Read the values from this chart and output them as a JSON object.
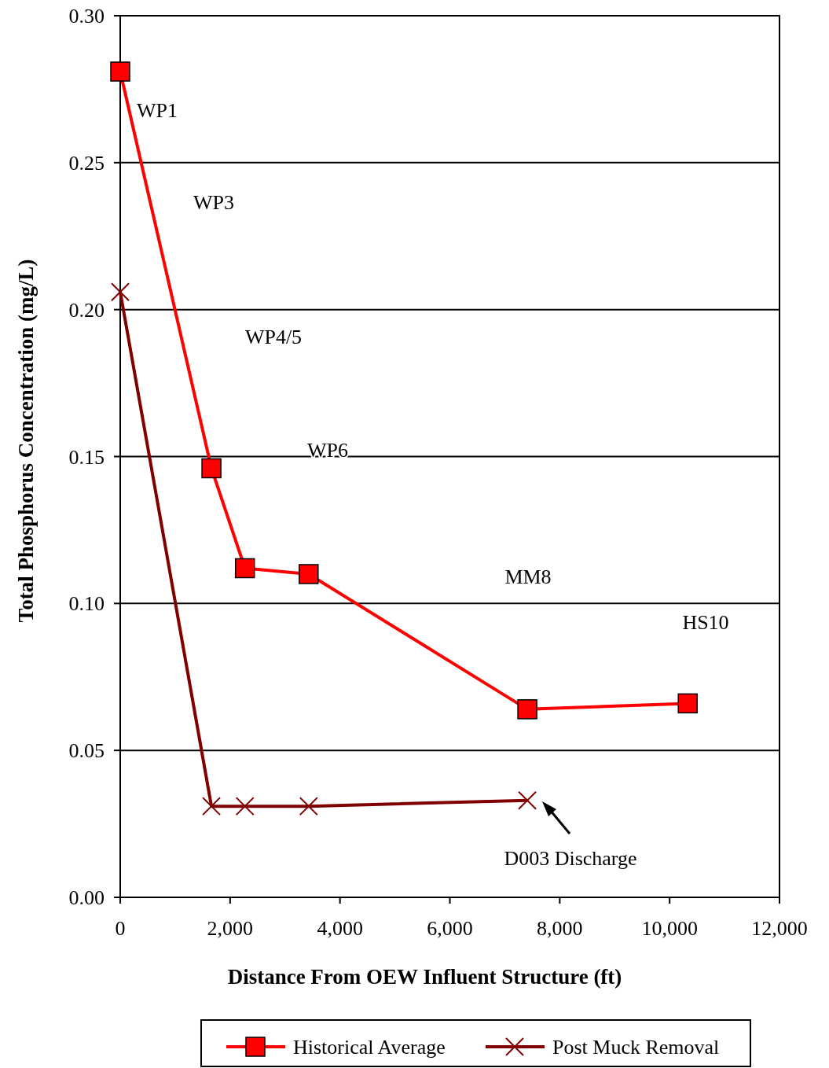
{
  "chart_data": {
    "type": "line",
    "xlabel": "Distance From OEW Influent Structure (ft)",
    "ylabel": "Total Phosphorus Concentration (mg/L)",
    "xlim": [
      0,
      12000
    ],
    "xticks": [
      {
        "value": 0,
        "label": "0"
      },
      {
        "value": 2000,
        "label": "2,000"
      },
      {
        "value": 4000,
        "label": "4,000"
      },
      {
        "value": 6000,
        "label": "6,000"
      },
      {
        "value": 8000,
        "label": "8,000"
      },
      {
        "value": 10000,
        "label": "10,000"
      },
      {
        "value": 12000,
        "label": "12,000"
      }
    ],
    "ylim": [
      0,
      0.3
    ],
    "yticks": [
      {
        "value": 0,
        "label": "0.00"
      },
      {
        "value": 0.05,
        "label": "0.05"
      },
      {
        "value": 0.1,
        "label": "0.10"
      },
      {
        "value": 0.15,
        "label": "0.15"
      },
      {
        "value": 0.2,
        "label": "0.20"
      },
      {
        "value": 0.25,
        "label": "0.25"
      },
      {
        "value": 0.3,
        "label": "0.30"
      }
    ],
    "grid": "y",
    "legend": "bottom",
    "line_style": "solid",
    "series": [
      {
        "name": "Historical Average",
        "color": "#ff0000",
        "marker": "square",
        "x": [
          0,
          1660,
          2270,
          3430,
          7410,
          10330
        ],
        "values": [
          0.281,
          0.146,
          0.112,
          0.11,
          0.064,
          0.066
        ]
      },
      {
        "name": "Post Muck Removal",
        "color": "#800000",
        "marker": "cross",
        "x": [
          0,
          1660,
          2270,
          3430,
          7410
        ],
        "values": [
          0.206,
          0.031,
          0.031,
          0.031,
          0.033
        ]
      }
    ],
    "annotations": [
      "WP1",
      "WP3",
      "WP4/5",
      "WP6",
      "MM8",
      "HS10",
      "D003 Discharge"
    ]
  }
}
